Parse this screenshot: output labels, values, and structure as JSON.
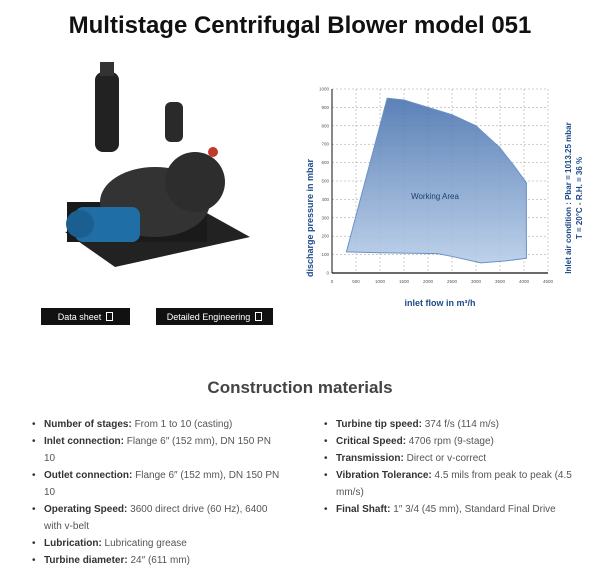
{
  "title": "Multistage Centrifugal Blower model 051",
  "buttons": {
    "datasheet": "Data sheet",
    "engineering": "Detailed Engineering"
  },
  "chart_data": {
    "type": "area",
    "xlabel": "inlet flow in m³/h",
    "ylabel": "discharge pressure in mbar",
    "side_note": [
      "Inlet air condition : Pbar = 1013.25 mbar",
      "T = 20°C - R.H. = 36 %"
    ],
    "annotation": "Working Area",
    "xlim": [
      0,
      4500
    ],
    "ylim": [
      0,
      1000
    ],
    "xticks": [
      0,
      500,
      1000,
      1500,
      2000,
      2500,
      3000,
      3500,
      4000,
      4500
    ],
    "yticks": [
      0,
      100,
      200,
      300,
      400,
      500,
      600,
      700,
      800,
      900,
      1000
    ],
    "grid": true,
    "polygon": [
      [
        300,
        115
      ],
      [
        1150,
        950
      ],
      [
        1500,
        940
      ],
      [
        2000,
        900
      ],
      [
        2500,
        860
      ],
      [
        3000,
        800
      ],
      [
        3500,
        680
      ],
      [
        3800,
        580
      ],
      [
        4050,
        490
      ],
      [
        4050,
        80
      ],
      [
        3600,
        65
      ],
      [
        3100,
        55
      ],
      [
        2500,
        90
      ],
      [
        2200,
        105
      ],
      [
        1000,
        110
      ]
    ],
    "color": "#5b86c0"
  },
  "section_title": "Construction materials",
  "left_specs": [
    {
      "label": "Number of stages:",
      "value": " From 1 to 10 (casting)"
    },
    {
      "label": "Inlet connection:",
      "value": "  Flange 6″ (152 mm), DN 150 PN 10"
    },
    {
      "label": "Outlet connection:",
      "value": "  Flange 6″ (152 mm), DN 150 PN 10"
    },
    {
      "label": "Operating Speed:",
      "value": "  3600 direct drive (60 Hz), 6400 with v-belt"
    },
    {
      "label": "Lubrication:",
      "value": "  Lubricating grease"
    },
    {
      "label": "Turbine diameter:",
      "value": "  24″ (611 mm)"
    }
  ],
  "right_specs": [
    {
      "label": "Turbine tip speed:",
      "value": "  374 f/s (114 m/s)"
    },
    {
      "label": "Critical Speed:",
      "value": "  4706 rpm (9-stage)"
    },
    {
      "label": "Transmission:",
      "value": "  Direct or v-correct"
    },
    {
      "label": "Vibration Tolerance:",
      "value": "  4.5 mils from peak to peak (4.5 mm/s)"
    },
    {
      "label": "Final Shaft:",
      "value": "  1″ 3/4 (45 mm), Standard Final Drive"
    }
  ]
}
